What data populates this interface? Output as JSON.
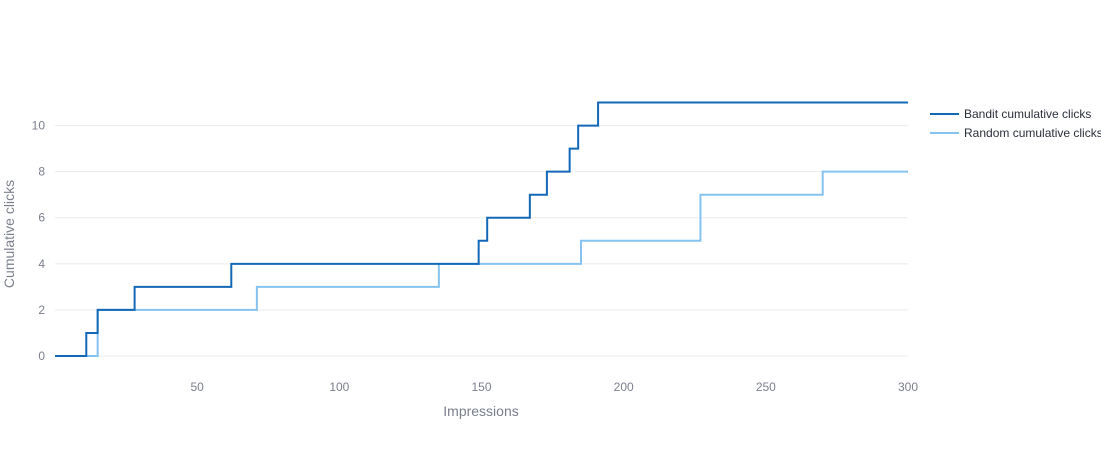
{
  "chart_data": {
    "type": "line",
    "line_shape": "step",
    "title": "",
    "xlabel": "Impressions",
    "ylabel": "Cumulative clicks",
    "xlim": [
      0,
      300
    ],
    "ylim": [
      0,
      11.5
    ],
    "x_ticks": [
      50,
      100,
      150,
      200,
      250,
      300
    ],
    "y_ticks": [
      0,
      2,
      4,
      6,
      8,
      10
    ],
    "grid": "horizontal",
    "legend_position": "right",
    "series": [
      {
        "name": "Bandit cumulative clicks",
        "color": "#1468b8",
        "points": [
          [
            0,
            0
          ],
          [
            11,
            0
          ],
          [
            11,
            1
          ],
          [
            15,
            1
          ],
          [
            15,
            2
          ],
          [
            28,
            2
          ],
          [
            28,
            3
          ],
          [
            62,
            3
          ],
          [
            62,
            4
          ],
          [
            149,
            4
          ],
          [
            149,
            5
          ],
          [
            152,
            5
          ],
          [
            152,
            6
          ],
          [
            167,
            6
          ],
          [
            167,
            7
          ],
          [
            173,
            7
          ],
          [
            173,
            8
          ],
          [
            181,
            8
          ],
          [
            181,
            9
          ],
          [
            184,
            9
          ],
          [
            184,
            10
          ],
          [
            191,
            10
          ],
          [
            191,
            11
          ],
          [
            300,
            11
          ]
        ]
      },
      {
        "name": "Random cumulative clicks",
        "color": "#86c3f1",
        "points": [
          [
            0,
            0
          ],
          [
            15,
            0
          ],
          [
            15,
            2
          ],
          [
            71,
            2
          ],
          [
            71,
            3
          ],
          [
            135,
            3
          ],
          [
            135,
            4
          ],
          [
            185,
            4
          ],
          [
            185,
            5
          ],
          [
            227,
            5
          ],
          [
            227,
            7
          ],
          [
            270,
            7
          ],
          [
            270,
            8
          ],
          [
            300,
            8
          ]
        ]
      }
    ]
  }
}
